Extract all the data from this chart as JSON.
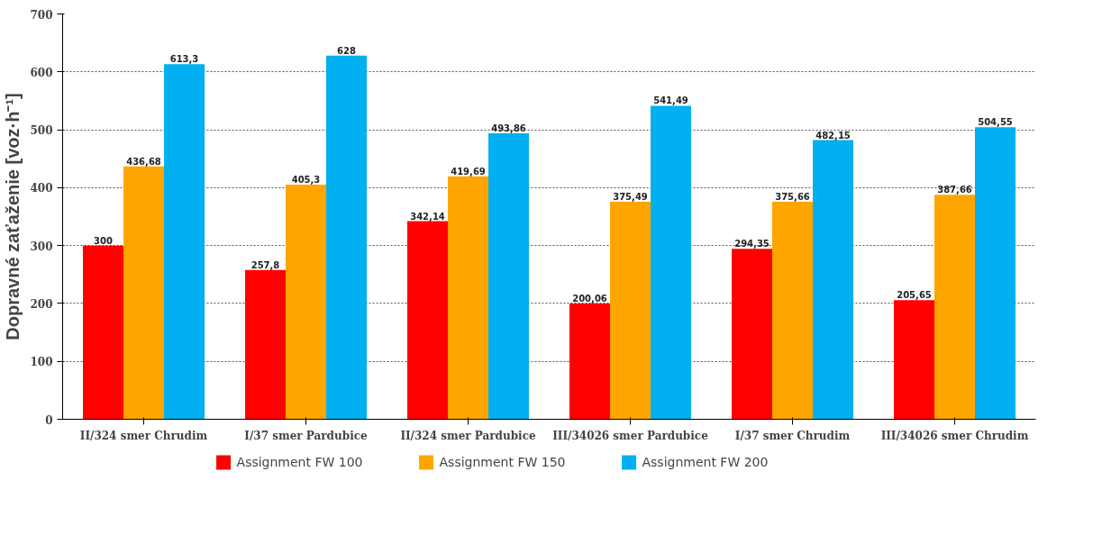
{
  "chart_data": {
    "type": "bar",
    "ylabel": "Dopravné zaťaženie [voz·h⁻¹]",
    "categories": [
      "II/324 smer Chrudim",
      "I/37 smer Pardubice",
      "II/324 smer Pardubice",
      "III/34026 smer Pardubice",
      "I/37 smer Chrudim",
      "III/34026 smer Chrudim"
    ],
    "series": [
      {
        "name": "Assignment FW 100",
        "color": "#ff0000",
        "values": [
          300,
          257.8,
          342.14,
          200.06,
          294.35,
          205.65
        ],
        "value_labels": [
          "300",
          "257,8",
          "342,14",
          "200,06",
          "294,35",
          "205,65"
        ]
      },
      {
        "name": "Assignment FW 150",
        "color": "#ffa500",
        "values": [
          436.68,
          405.3,
          419.69,
          375.49,
          375.66,
          387.66
        ],
        "value_labels": [
          "436,68",
          "405,3",
          "419,69",
          "375,49",
          "375,66",
          "387,66"
        ]
      },
      {
        "name": "Assignment FW 200",
        "color": "#00b0f0",
        "values": [
          613.3,
          628,
          493.86,
          541.49,
          482.15,
          504.55
        ],
        "value_labels": [
          "613,3",
          "628",
          "493,86",
          "541,49",
          "482,15",
          "504,55"
        ]
      }
    ],
    "ylim": [
      0,
      700
    ],
    "yticks": [
      0,
      100,
      200,
      300,
      400,
      500,
      600,
      700
    ],
    "grid": "y",
    "legend": "bottom"
  }
}
